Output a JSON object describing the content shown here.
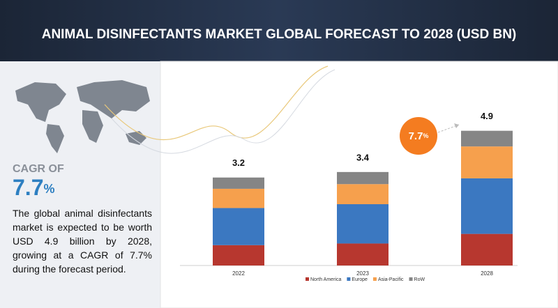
{
  "header": {
    "title": "ANIMAL DISINFECTANTS MARKET GLOBAL FORECAST TO 2028 (USD BN)"
  },
  "sidebar": {
    "cagr_label": "CAGR OF",
    "cagr_value": "7.7",
    "cagr_unit": "%",
    "description": "The global animal disinfectants market is expected to be worth USD 4.9 billion by 2028, growing at a CAGR of 7.7% during the forecast period."
  },
  "chart_data": {
    "type": "stacked-bar",
    "categories": [
      "2022",
      "2023",
      "2028"
    ],
    "series": [
      {
        "name": "North America",
        "color": "#b7372f",
        "values": [
          0.74,
          0.8,
          1.15
        ]
      },
      {
        "name": "Europe",
        "color": "#3b78c1",
        "values": [
          1.35,
          1.43,
          2.02
        ]
      },
      {
        "name": "Asia-Pacific",
        "color": "#f6a04d",
        "values": [
          0.7,
          0.73,
          1.16
        ]
      },
      {
        "name": "RoW",
        "color": "#858585",
        "values": [
          0.41,
          0.44,
          0.57
        ]
      }
    ],
    "totals": [
      3.2,
      3.4,
      4.9
    ],
    "ylim": [
      0,
      5.5
    ],
    "cagr_badge": {
      "value": "7.7",
      "unit": "%",
      "color": "#f47c20"
    },
    "legend": "bottom"
  }
}
